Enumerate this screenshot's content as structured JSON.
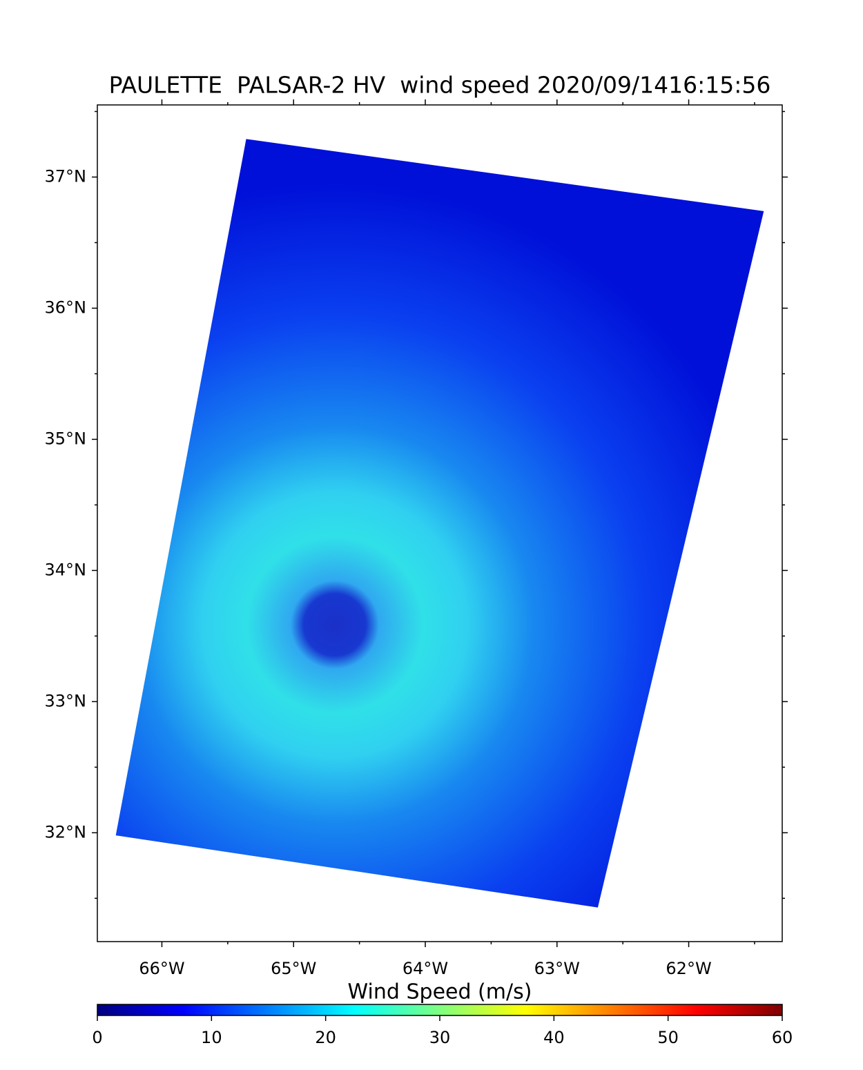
{
  "chart_data": {
    "type": "swath_map",
    "title": "PAULETTE  PALSAR-2 HV  wind speed 2020/09/1416:15:56",
    "xlim": [
      -66.49,
      -61.29
    ],
    "ylim": [
      31.17,
      37.55
    ],
    "xticks": [
      {
        "value": -66,
        "label": "66°W"
      },
      {
        "value": -65,
        "label": "65°W"
      },
      {
        "value": -64,
        "label": "64°W"
      },
      {
        "value": -63,
        "label": "63°W"
      },
      {
        "value": -62,
        "label": "62°W"
      }
    ],
    "yticks": [
      {
        "value": 32,
        "label": "32°N"
      },
      {
        "value": 33,
        "label": "33°N"
      },
      {
        "value": 34,
        "label": "34°N"
      },
      {
        "value": 35,
        "label": "35°N"
      },
      {
        "value": 36,
        "label": "36°N"
      },
      {
        "value": 37,
        "label": "37°N"
      }
    ],
    "xminorticks": [
      -65.5,
      -64.5,
      -63.5,
      -62.5,
      -61.5
    ],
    "yminorticks": [
      31.5,
      32.5,
      33.5,
      34.5,
      35.5,
      36.5,
      37.5
    ],
    "swath": {
      "lon": [
        -65.36,
        -61.43,
        -62.69,
        -66.35
      ],
      "lat": [
        37.29,
        36.74,
        31.43,
        31.98
      ]
    },
    "colorbar": {
      "label": "Wind Speed (m/s)",
      "lim": [
        0,
        60
      ],
      "ticks": [
        0,
        10,
        20,
        30,
        40,
        50,
        60
      ],
      "colors": [
        "#00007f",
        "#0000ff",
        "#007fff",
        "#00ffff",
        "#7fff7f",
        "#ffff00",
        "#ff7f00",
        "#ff0000",
        "#7f0000"
      ]
    }
  }
}
